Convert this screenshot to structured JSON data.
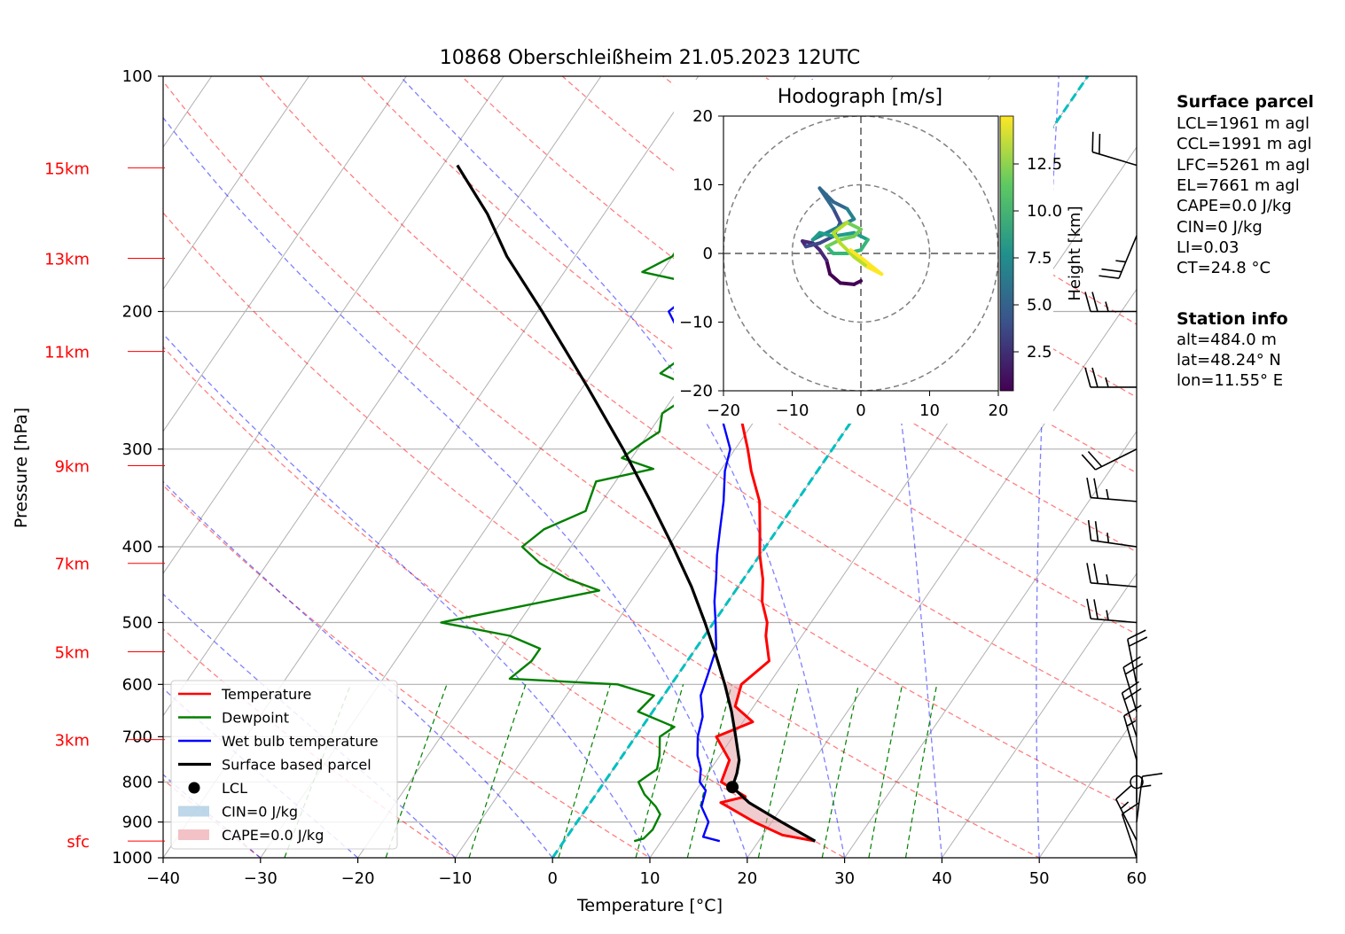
{
  "title": "10868 Oberschleißheim 21.05.2023 12UTC",
  "chart_data": {
    "type": "line",
    "subtype": "skew-t log-p",
    "title": "10868 Oberschleißheim 21.05.2023 12UTC",
    "xlabel": "Temperature [°C]",
    "ylabel": "Pressure [hPa]",
    "xlim": [
      -40,
      60
    ],
    "ylim": [
      1000,
      100
    ],
    "y_scale": "log",
    "grid": true,
    "x_ticks": [
      "−40",
      "−30",
      "−20",
      "−10",
      "0",
      "10",
      "20",
      "30",
      "40",
      "50",
      "60"
    ],
    "y_ticks": [
      "100",
      "200",
      "300",
      "400",
      "500",
      "600",
      "700",
      "800",
      "900",
      "1000"
    ],
    "height_labels": [
      {
        "label": "15km",
        "p": 131
      },
      {
        "label": "13km",
        "p": 171
      },
      {
        "label": "11km",
        "p": 225
      },
      {
        "label": "9km",
        "p": 315
      },
      {
        "label": "7km",
        "p": 420
      },
      {
        "label": "5km",
        "p": 545
      },
      {
        "label": "3km",
        "p": 706
      },
      {
        "label": "sfc",
        "p": 952
      }
    ],
    "legend": {
      "position": "lower-left",
      "entries": [
        "Temperature",
        "Dewpoint",
        "Wet bulb temperature",
        "Surface based parcel",
        "LCL",
        "CIN=0 J/kg",
        "CAPE=0.0 J/kg"
      ]
    },
    "series": [
      {
        "name": "Temperature",
        "color": "#ff0000",
        "points": [
          [
            952,
            25.8
          ],
          [
            935,
            22
          ],
          [
            900,
            18.2
          ],
          [
            850,
            13.4
          ],
          [
            835,
            15.5
          ],
          [
            800,
            12
          ],
          [
            750,
            11.3
          ],
          [
            700,
            8.3
          ],
          [
            670,
            11
          ],
          [
            640,
            8.1
          ],
          [
            600,
            7.2
          ],
          [
            560,
            8.4
          ],
          [
            520,
            6.3
          ],
          [
            500,
            5.5
          ],
          [
            470,
            3.5
          ],
          [
            440,
            2
          ],
          [
            410,
            0
          ],
          [
            380,
            -1.8
          ],
          [
            350,
            -3.8
          ],
          [
            320,
            -6.8
          ],
          [
            300,
            -8.7
          ],
          [
            270,
            -12
          ],
          [
            250,
            -15.5
          ],
          [
            230,
            -19
          ],
          [
            215,
            -22.5
          ],
          [
            200,
            -25.8
          ],
          [
            195,
            -25.5
          ],
          [
            188,
            -16
          ],
          [
            180,
            -11
          ],
          [
            172,
            -8.5
          ],
          [
            164,
            -6.5
          ],
          [
            155,
            -4
          ],
          [
            147,
            -2
          ],
          [
            140,
            -0.8
          ],
          [
            133,
            -0.4
          ],
          [
            130,
            -0.2
          ]
        ]
      },
      {
        "name": "Dewpoint",
        "color": "#008000",
        "points": [
          [
            952,
            7.2
          ],
          [
            945,
            8
          ],
          [
            920,
            8.3
          ],
          [
            880,
            8
          ],
          [
            860,
            7
          ],
          [
            830,
            5
          ],
          [
            800,
            3.5
          ],
          [
            770,
            4.5
          ],
          [
            740,
            3.8
          ],
          [
            700,
            2.5
          ],
          [
            680,
            3.3
          ],
          [
            650,
            -1.5
          ],
          [
            620,
            -1
          ],
          [
            600,
            -5.5
          ],
          [
            590,
            -17
          ],
          [
            560,
            -16
          ],
          [
            540,
            -16
          ],
          [
            520,
            -20
          ],
          [
            500,
            -28
          ],
          [
            480,
            -22
          ],
          [
            455,
            -14
          ],
          [
            440,
            -18
          ],
          [
            420,
            -22
          ],
          [
            400,
            -25
          ],
          [
            380,
            -24
          ],
          [
            360,
            -21
          ],
          [
            330,
            -22
          ],
          [
            318,
            -17
          ],
          [
            308,
            -21
          ],
          [
            295,
            -20
          ],
          [
            285,
            -19
          ],
          [
            270,
            -20
          ],
          [
            252,
            -18
          ],
          [
            240,
            -23
          ],
          [
            230,
            -22
          ],
          [
            220,
            -18
          ],
          [
            210,
            -18.5
          ],
          [
            200,
            -19.5
          ],
          [
            193,
            -21
          ],
          [
            185,
            -25
          ],
          [
            178,
            -32
          ],
          [
            170,
            -30
          ],
          [
            160,
            -30
          ],
          [
            150,
            -28
          ],
          [
            140,
            -26
          ],
          [
            130,
            -21.5
          ]
        ]
      },
      {
        "name": "Wet bulb temperature",
        "color": "#0000ff",
        "points": [
          [
            952,
            16
          ],
          [
            940,
            14
          ],
          [
            900,
            13.5
          ],
          [
            860,
            11.7
          ],
          [
            820,
            11
          ],
          [
            800,
            9.8
          ],
          [
            770,
            9
          ],
          [
            740,
            7.7
          ],
          [
            700,
            6.4
          ],
          [
            660,
            5.5
          ],
          [
            620,
            3.8
          ],
          [
            580,
            3
          ],
          [
            540,
            2.1
          ],
          [
            500,
            0.2
          ],
          [
            470,
            -1.4
          ],
          [
            440,
            -2.8
          ],
          [
            410,
            -4.4
          ],
          [
            380,
            -5.9
          ],
          [
            350,
            -7.5
          ],
          [
            320,
            -9.5
          ],
          [
            300,
            -10.5
          ],
          [
            270,
            -14
          ],
          [
            250,
            -17
          ],
          [
            230,
            -20.5
          ],
          [
            215,
            -23.5
          ],
          [
            200,
            -26.5
          ],
          [
            195,
            -26
          ],
          [
            188,
            -17
          ],
          [
            180,
            -12
          ],
          [
            172,
            -9.5
          ],
          [
            164,
            -7.5
          ],
          [
            155,
            -5
          ],
          [
            147,
            -3
          ],
          [
            140,
            -1.8
          ],
          [
            133,
            -1.2
          ],
          [
            130,
            -1
          ]
        ]
      },
      {
        "name": "Surface based parcel",
        "color": "#000000",
        "points": [
          [
            952,
            25.8
          ],
          [
            900,
            21
          ],
          [
            850,
            16.3
          ],
          [
            812,
            13.5
          ],
          [
            780,
            13
          ],
          [
            750,
            12.3
          ],
          [
            700,
            10.3
          ],
          [
            650,
            8.1
          ],
          [
            600,
            5.5
          ],
          [
            550,
            2.5
          ],
          [
            500,
            -0.9
          ],
          [
            450,
            -4.8
          ],
          [
            400,
            -9.5
          ],
          [
            350,
            -15
          ],
          [
            300,
            -21.5
          ],
          [
            250,
            -29.5
          ],
          [
            200,
            -39.5
          ],
          [
            170,
            -47
          ],
          [
            150,
            -52
          ],
          [
            130,
            -58.5
          ]
        ]
      }
    ],
    "lcl": {
      "p": 812,
      "t": 13.5
    },
    "reference_line_color": "#00bfbf",
    "wind_barbs": [
      {
        "p": 1000,
        "u": -2,
        "v": 6
      },
      {
        "p": 950,
        "u": -3,
        "v": 6
      },
      {
        "p": 900,
        "u": 1,
        "v": 8
      },
      {
        "p": 850,
        "u": 0,
        "v": 1
      },
      {
        "p": 800,
        "u": 0,
        "v": 0
      },
      {
        "p": 750,
        "u": -2,
        "v": 7
      },
      {
        "p": 700,
        "u": -3,
        "v": 9
      },
      {
        "p": 650,
        "u": -3,
        "v": 10
      },
      {
        "p": 600,
        "u": -2,
        "v": 10
      },
      {
        "p": 500,
        "u": -12,
        "v": 1
      },
      {
        "p": 450,
        "u": -12,
        "v": 1
      },
      {
        "p": 400,
        "u": -14,
        "v": 2
      },
      {
        "p": 350,
        "u": -12,
        "v": 1
      },
      {
        "p": 300,
        "u": -10,
        "v": -5
      },
      {
        "p": 250,
        "u": -13,
        "v": 0
      },
      {
        "p": 200,
        "u": -12,
        "v": 0
      },
      {
        "p": 160,
        "u": -5,
        "v": -12
      },
      {
        "p": 130,
        "u": -10,
        "v": 3
      }
    ],
    "hodograph": {
      "title": "Hodograph [m/s]",
      "xlim": [
        -20,
        20
      ],
      "ylim": [
        -20,
        20
      ],
      "ticks": [
        "−20",
        "−10",
        "0",
        "10",
        "20"
      ],
      "rings": [
        10,
        20
      ],
      "colorbar_label": "Height [km]",
      "colorbar_ticks": [
        "2.5",
        "5.0",
        "7.5",
        "10.0",
        "12.5"
      ],
      "points": [
        [
          0,
          -4
        ],
        [
          -1,
          -4.5
        ],
        [
          -3,
          -4.3
        ],
        [
          -4.5,
          -3
        ],
        [
          -5,
          -1
        ],
        [
          -6,
          0.5
        ],
        [
          -7,
          1.5
        ],
        [
          -8.5,
          1.8
        ],
        [
          -8,
          1
        ],
        [
          -6,
          1.5
        ],
        [
          -4,
          2.5
        ],
        [
          -3,
          4.5
        ],
        [
          -4,
          6.5
        ],
        [
          -5,
          8
        ],
        [
          -6,
          9.5
        ],
        [
          -4,
          7.5
        ],
        [
          -2,
          6.5
        ],
        [
          -1,
          5
        ],
        [
          -3,
          4
        ],
        [
          -5,
          3
        ],
        [
          -7,
          2
        ],
        [
          -6,
          3
        ],
        [
          -4,
          2.5
        ],
        [
          -1,
          3
        ],
        [
          1,
          2
        ],
        [
          0,
          0.5
        ],
        [
          -2,
          0
        ],
        [
          -4,
          0
        ],
        [
          -5,
          1
        ],
        [
          -3,
          2
        ],
        [
          -1,
          2.5
        ],
        [
          0,
          3.5
        ],
        [
          -2,
          4.5
        ],
        [
          -4,
          3
        ],
        [
          -3,
          1.5
        ],
        [
          -1,
          -0.5
        ],
        [
          1,
          -2
        ],
        [
          3,
          -3
        ],
        [
          0.5,
          -1
        ],
        [
          -1.5,
          0.5
        ]
      ]
    },
    "surface_parcel": {
      "heading": "Surface parcel",
      "lines": [
        "LCL=1961 m agl",
        "CCL=1991 m agl",
        "LFC=5261 m agl",
        "EL=7661 m agl",
        "CAPE=0.0 J/kg",
        "CIN=0 J/kg",
        "LI=0.03",
        "CT=24.8 °C"
      ]
    },
    "station_info": {
      "heading": "Station info",
      "lines": [
        "alt=484.0 m",
        "lat=48.24° N",
        "lon=11.55° E"
      ]
    }
  }
}
